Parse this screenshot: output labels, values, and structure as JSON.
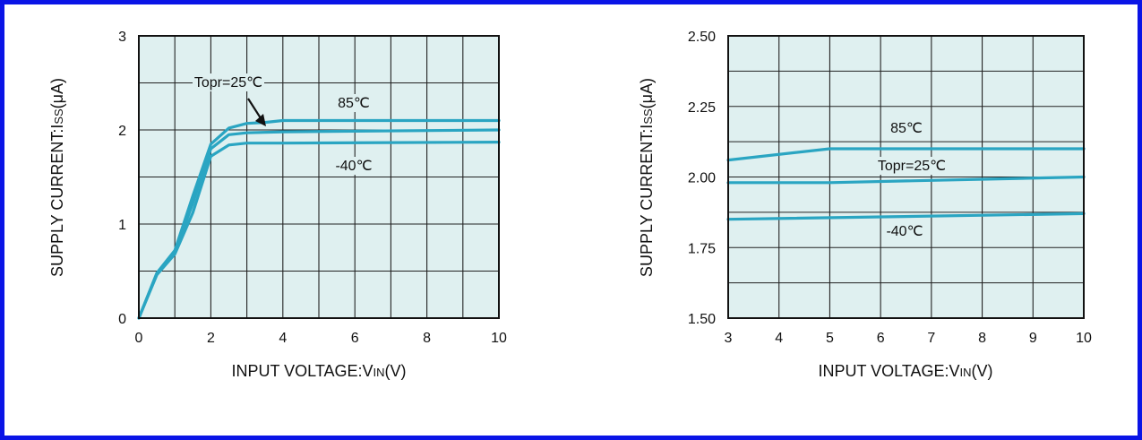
{
  "chart_data": [
    {
      "type": "line",
      "xlabel_main": "INPUT VOLTAGE:V",
      "xlabel_sub": "IN",
      "xlabel_unit": "(V)",
      "ylabel_main": "SUPPLY CURRENT:I",
      "ylabel_sub": "SS",
      "ylabel_unit": "(μA)",
      "xlim": [
        0,
        10
      ],
      "ylim": [
        0,
        3
      ],
      "x_grid_step": 1,
      "y_grid_step": 0.5,
      "xticks": [
        "0",
        "2",
        "4",
        "6",
        "8",
        "10"
      ],
      "yticks": [
        "0",
        "1",
        "2",
        "3"
      ],
      "grid": true,
      "background_color": "#dff0f0",
      "line_color": "#2aa5c2",
      "series": [
        {
          "name": "85℃",
          "x": [
            0,
            0.5,
            1.0,
            1.5,
            2.0,
            2.5,
            3.0,
            3.5,
            4,
            10
          ],
          "y": [
            0,
            0.48,
            0.72,
            1.3,
            1.85,
            2.02,
            2.07,
            2.08,
            2.1,
            2.1
          ]
        },
        {
          "name": "Topr=25℃",
          "x": [
            0,
            0.5,
            1.0,
            1.5,
            2.0,
            2.5,
            3.0,
            4,
            10
          ],
          "y": [
            0,
            0.47,
            0.7,
            1.22,
            1.8,
            1.95,
            1.97,
            1.98,
            2.0
          ]
        },
        {
          "name": "-40℃",
          "x": [
            0,
            0.5,
            1.0,
            1.5,
            2.0,
            2.5,
            3.0,
            4,
            10
          ],
          "y": [
            0,
            0.46,
            0.68,
            1.12,
            1.72,
            1.84,
            1.86,
            1.86,
            1.87
          ]
        }
      ]
    },
    {
      "type": "line",
      "xlabel_main": "INPUT VOLTAGE:V",
      "xlabel_sub": "IN",
      "xlabel_unit": "(V)",
      "ylabel_main": "SUPPLY CURRENT:I",
      "ylabel_sub": "SS",
      "ylabel_unit": "(μA)",
      "xlim": [
        3,
        10
      ],
      "ylim": [
        1.5,
        2.5
      ],
      "x_grid_step": 1,
      "y_grid_step": 0.125,
      "xticks": [
        "3",
        "4",
        "5",
        "6",
        "7",
        "8",
        "9",
        "10"
      ],
      "yticks": [
        "1.50",
        "1.75",
        "2.00",
        "2.25",
        "2.50"
      ],
      "grid": true,
      "background_color": "#dff0f0",
      "line_color": "#2aa5c2",
      "series": [
        {
          "name": "85℃",
          "x": [
            3,
            5,
            10
          ],
          "y": [
            2.06,
            2.1,
            2.1
          ]
        },
        {
          "name": "Topr=25℃",
          "x": [
            3,
            5,
            10
          ],
          "y": [
            1.98,
            1.98,
            2.0
          ]
        },
        {
          "name": "-40℃",
          "x": [
            3,
            10
          ],
          "y": [
            1.85,
            1.87
          ]
        }
      ]
    }
  ]
}
